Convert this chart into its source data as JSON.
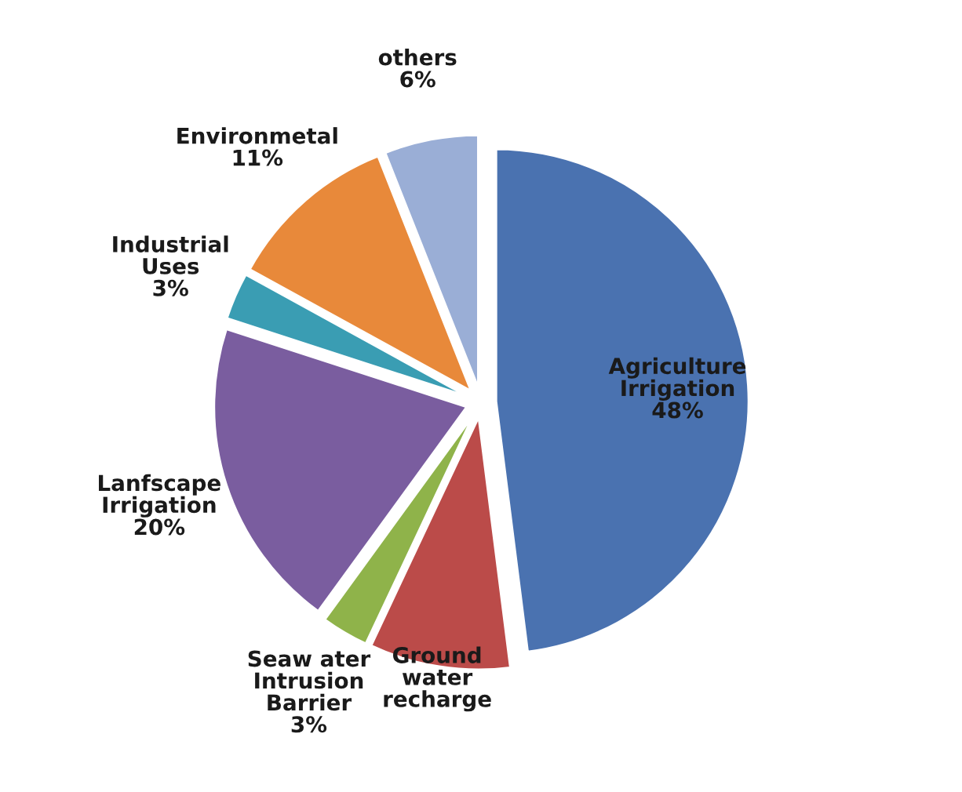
{
  "chart_data": {
    "type": "pie",
    "categories": [
      "Agriculture\nIrrigation",
      "Ground\nwater\nrecharge",
      "Seaw ater\nIntrusion\nBarrier",
      "Lanfscape\nIrrigation",
      "Industrial\nUses",
      "Environmetal",
      "others"
    ],
    "values": [
      48,
      9,
      3,
      20,
      3,
      11,
      6
    ],
    "value_labels": [
      "48%",
      null,
      "3%",
      "20%",
      "3%",
      "11%",
      "6%"
    ],
    "colors": [
      "#4a72b0",
      "#bb4b49",
      "#8fb34a",
      "#7a5d9f",
      "#3a9db3",
      "#e8893a",
      "#9aaed6"
    ]
  }
}
